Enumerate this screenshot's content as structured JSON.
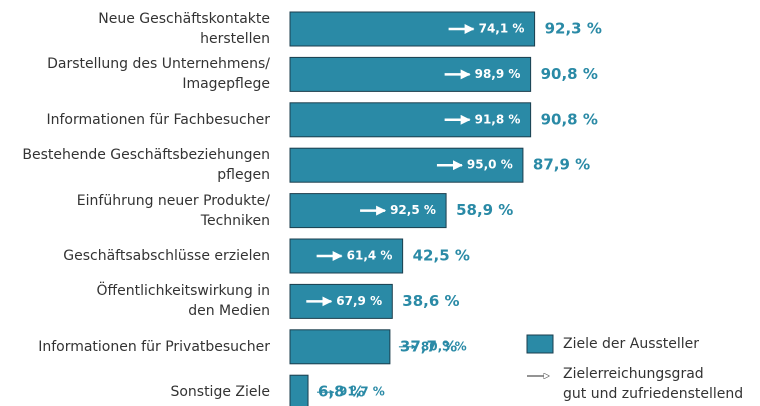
{
  "chart_data": {
    "type": "bar",
    "orientation": "horizontal",
    "categories": [
      "Neue Geschäftskontakte\nherstellen",
      "Darstellung des Unternehmens/\nImagepflege",
      "Informationen für Fachbesucher",
      "Bestehende Geschäftsbeziehungen\npflegen",
      "Einführung neuer Produkte/\nTechniken",
      "Geschäftsabschlüsse erzielen",
      "Öffentlichkeitswirkung in\nden Medien",
      "Informationen für Privatbesucher",
      "Sonstige Ziele"
    ],
    "xlim": [
      0,
      100
    ],
    "series": [
      {
        "name": "Ziele der Aussteller",
        "color": "#2a8aa6",
        "values": [
          92.3,
          90.8,
          90.8,
          87.9,
          58.9,
          42.5,
          38.6,
          37.7,
          6.8
        ],
        "value_labels": [
          "92,3 %",
          "90,8 %",
          "90,8 %",
          "87,9 %",
          "58,9 %",
          "42,5 %",
          "38,6 %",
          "37,7 %",
          "6,8 %"
        ]
      },
      {
        "name": "Zielerreichungsgrad\ngut und zufriedenstellend",
        "values": [
          74.1,
          98.9,
          91.8,
          95.0,
          92.5,
          61.4,
          67.9,
          80.3,
          91.7
        ],
        "value_labels": [
          "74,1 %",
          "98,9 %",
          "91,8 %",
          "95,0 %",
          "92,5 %",
          "61,4 %",
          "67,9 %",
          "80,3 %",
          "91,7 %"
        ]
      }
    ]
  }
}
